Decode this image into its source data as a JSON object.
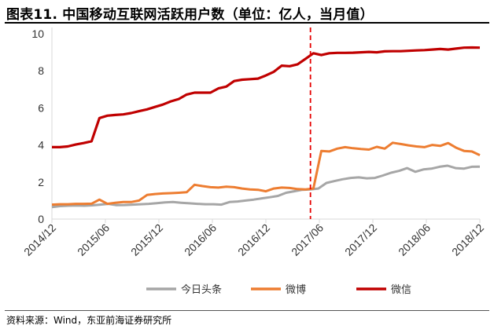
{
  "header": {
    "title": "图表11. 中国移动互联网活跃用户数（单位：亿人，当月值）"
  },
  "footer": {
    "source": "资料来源：Wind，东亚前海证券研究所"
  },
  "colors": {
    "toutiao": "#a6a6a6",
    "weibo": "#ed7d31",
    "weixin": "#c00000",
    "marker": "#e60000",
    "axis": "#d9d9d9"
  },
  "chart_data": {
    "type": "line",
    "title": "",
    "xlabel": "",
    "ylabel": "",
    "ylim": [
      0,
      10
    ],
    "yticks": [
      0,
      2,
      4,
      6,
      8,
      10
    ],
    "grid": false,
    "legend": "bottom",
    "x_start": "2014/12",
    "x_end": "2018/12",
    "x_tick_labels": [
      "2014/12",
      "2015/06",
      "2015/12",
      "2016/06",
      "2016/12",
      "2017/06",
      "2017/12",
      "2018/06",
      "2018/12"
    ],
    "annotation": {
      "type": "vertical-dashed-line",
      "x": "2017/05"
    },
    "series": [
      {
        "name": "今日头条",
        "color": "#a6a6a6",
        "values": [
          0.65,
          0.7,
          0.72,
          0.73,
          0.72,
          0.74,
          0.78,
          0.82,
          0.75,
          0.76,
          0.78,
          0.8,
          0.82,
          0.86,
          0.9,
          0.92,
          0.88,
          0.85,
          0.82,
          0.8,
          0.8,
          0.78,
          0.92,
          0.95,
          1.0,
          1.05,
          1.12,
          1.18,
          1.25,
          1.42,
          1.5,
          1.58,
          1.6,
          1.65,
          1.95,
          2.05,
          2.15,
          2.22,
          2.25,
          2.2,
          2.22,
          2.35,
          2.5,
          2.6,
          2.75,
          2.55,
          2.68,
          2.72,
          2.82,
          2.88,
          2.75,
          2.72,
          2.82,
          2.83
        ]
      },
      {
        "name": "微博",
        "color": "#ed7d31",
        "values": [
          0.78,
          0.8,
          0.8,
          0.82,
          0.82,
          0.83,
          1.05,
          0.82,
          0.88,
          0.92,
          0.92,
          1.0,
          1.3,
          1.35,
          1.38,
          1.4,
          1.42,
          1.45,
          1.85,
          1.78,
          1.72,
          1.7,
          1.75,
          1.72,
          1.65,
          1.6,
          1.58,
          1.5,
          1.65,
          1.7,
          1.68,
          1.62,
          1.6,
          1.65,
          3.68,
          3.65,
          3.8,
          3.88,
          3.82,
          3.78,
          3.75,
          3.9,
          3.8,
          4.12,
          4.05,
          3.98,
          3.92,
          3.88,
          4.0,
          3.95,
          4.1,
          3.85,
          3.68,
          3.65,
          3.45
        ]
      },
      {
        "name": "微信",
        "color": "#c00000",
        "values": [
          3.88,
          3.88,
          3.92,
          4.02,
          4.1,
          4.2,
          5.45,
          5.58,
          5.62,
          5.65,
          5.72,
          5.82,
          5.92,
          6.05,
          6.18,
          6.35,
          6.48,
          6.72,
          6.82,
          6.82,
          6.82,
          7.05,
          7.15,
          7.45,
          7.52,
          7.55,
          7.58,
          7.75,
          7.95,
          8.28,
          8.25,
          8.35,
          8.65,
          8.95,
          8.85,
          8.95,
          8.97,
          8.97,
          8.98,
          9.0,
          9.02,
          9.0,
          9.05,
          9.06,
          9.06,
          9.08,
          9.1,
          9.12,
          9.15,
          9.18,
          9.15,
          9.2,
          9.25,
          9.26,
          9.25
        ]
      }
    ]
  }
}
